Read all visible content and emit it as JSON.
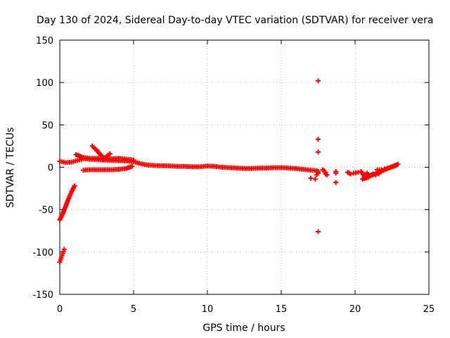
{
  "chart_data": {
    "type": "scatter",
    "title": "Day 130 of 2024, Sidereal Day-to-day VTEC variation (SDTVAR) for receiver vera",
    "xlabel": "GPS time / hours",
    "ylabel": "SDTVAR / TECUs",
    "xlim": [
      0,
      25
    ],
    "ylim": [
      -150,
      150
    ],
    "x_ticks": [
      0,
      5,
      10,
      15,
      20,
      25
    ],
    "y_ticks": [
      -150,
      -100,
      -50,
      0,
      50,
      100,
      150
    ],
    "x_tick_labels": [
      "0",
      "5",
      "10",
      "15",
      "20",
      "25"
    ],
    "y_tick_labels": [
      "-150",
      "-100",
      "-50",
      "0",
      "50",
      "100",
      "150"
    ],
    "grid": true,
    "marker": "+",
    "marker_color": "#ff0000",
    "series_segments": [
      {
        "name": "main-track",
        "points": [
          [
            0.0,
            7
          ],
          [
            0.4,
            5.5
          ],
          [
            0.8,
            6
          ],
          [
            1.2,
            8
          ],
          [
            1.6,
            10
          ],
          [
            2.0,
            9.5
          ],
          [
            2.5,
            9
          ],
          [
            3.0,
            8.5
          ],
          [
            3.5,
            8
          ],
          [
            4.0,
            7.8
          ],
          [
            4.5,
            7.5
          ],
          [
            5.0,
            6.5
          ],
          [
            5.5,
            4
          ],
          [
            6.0,
            2.5
          ],
          [
            6.5,
            2
          ],
          [
            7.0,
            1.8
          ],
          [
            7.5,
            1.5
          ],
          [
            8.0,
            1
          ],
          [
            8.5,
            1
          ],
          [
            9.0,
            0.5
          ],
          [
            9.5,
            0.5
          ],
          [
            10.0,
            1.5
          ],
          [
            10.5,
            1
          ],
          [
            11.0,
            0
          ],
          [
            11.5,
            -0.5
          ],
          [
            12.0,
            -1
          ],
          [
            12.5,
            -1.5
          ],
          [
            13.0,
            -1.5
          ],
          [
            13.5,
            -1
          ],
          [
            14.0,
            -1
          ],
          [
            14.5,
            -0.5
          ],
          [
            15.0,
            -0.5
          ],
          [
            15.5,
            -1
          ],
          [
            16.0,
            -1.5
          ],
          [
            16.5,
            -2.5
          ],
          [
            17.0,
            -3.5
          ],
          [
            17.4,
            -4
          ]
        ]
      },
      {
        "name": "arc-lower",
        "points": [
          [
            1.6,
            -3.5
          ],
          [
            2.0,
            -3
          ],
          [
            2.5,
            -3
          ],
          [
            3.0,
            -3
          ],
          [
            3.5,
            -3
          ],
          [
            4.0,
            -2.5
          ],
          [
            4.5,
            -1.5
          ],
          [
            4.9,
            1
          ]
        ]
      },
      {
        "name": "arc-upper",
        "points": [
          [
            1.1,
            15
          ],
          [
            1.5,
            12
          ],
          [
            2.0,
            10.5
          ],
          [
            2.5,
            10.5
          ],
          [
            3.0,
            10.5
          ],
          [
            3.5,
            10
          ],
          [
            4.0,
            10.5
          ],
          [
            4.5,
            9.5
          ],
          [
            5.0,
            8.5
          ]
        ]
      },
      {
        "name": "spike-steep",
        "points": [
          [
            2.2,
            25
          ],
          [
            2.5,
            20
          ],
          [
            2.8,
            14
          ],
          [
            3.0,
            11
          ]
        ]
      },
      {
        "name": "spike-short",
        "points": [
          [
            2.9,
            9
          ],
          [
            3.2,
            13
          ],
          [
            3.4,
            16
          ]
        ]
      },
      {
        "name": "rise-from-minus-60",
        "points": [
          [
            0.0,
            -62
          ],
          [
            0.2,
            -55
          ],
          [
            0.4,
            -46
          ],
          [
            0.6,
            -37
          ],
          [
            0.8,
            -29
          ],
          [
            1.0,
            -22
          ]
        ]
      },
      {
        "name": "rise-from-minus-110",
        "points": [
          [
            0.0,
            -112
          ],
          [
            0.1,
            -107
          ],
          [
            0.2,
            -102
          ],
          [
            0.3,
            -97
          ]
        ]
      },
      {
        "name": "cluster-17h",
        "points": [
          [
            17.5,
            102
          ],
          [
            17.5,
            33
          ],
          [
            17.5,
            18
          ],
          [
            17.5,
            -5
          ],
          [
            17.5,
            -7
          ],
          [
            17.5,
            -76
          ],
          [
            17.3,
            -14
          ],
          [
            17.0,
            -13
          ],
          [
            17.4,
            -9
          ],
          [
            17.8,
            -3
          ],
          [
            17.9,
            -4
          ],
          [
            18.0,
            -6
          ],
          [
            18.0,
            -8
          ],
          [
            18.1,
            -9
          ],
          [
            18.7,
            -7
          ],
          [
            18.7,
            -5
          ],
          [
            18.7,
            -18
          ]
        ]
      },
      {
        "name": "tail-20h",
        "points": [
          [
            19.5,
            -6
          ],
          [
            19.7,
            -8
          ],
          [
            19.9,
            -7
          ],
          [
            20.2,
            -6
          ],
          [
            20.4,
            -5
          ],
          [
            20.6,
            -10
          ],
          [
            20.8,
            -7
          ],
          [
            21.0,
            -10
          ],
          [
            21.2,
            -8
          ],
          [
            21.4,
            -9
          ],
          [
            21.6,
            -8
          ],
          [
            21.5,
            -3
          ],
          [
            21.8,
            -3
          ],
          [
            22.0,
            -2
          ],
          [
            22.2,
            -1
          ],
          [
            22.4,
            0
          ],
          [
            22.6,
            1
          ],
          [
            22.8,
            2.5
          ],
          [
            22.9,
            3.5
          ],
          [
            20.5,
            -14
          ],
          [
            20.9,
            -12
          ]
        ]
      }
    ]
  }
}
